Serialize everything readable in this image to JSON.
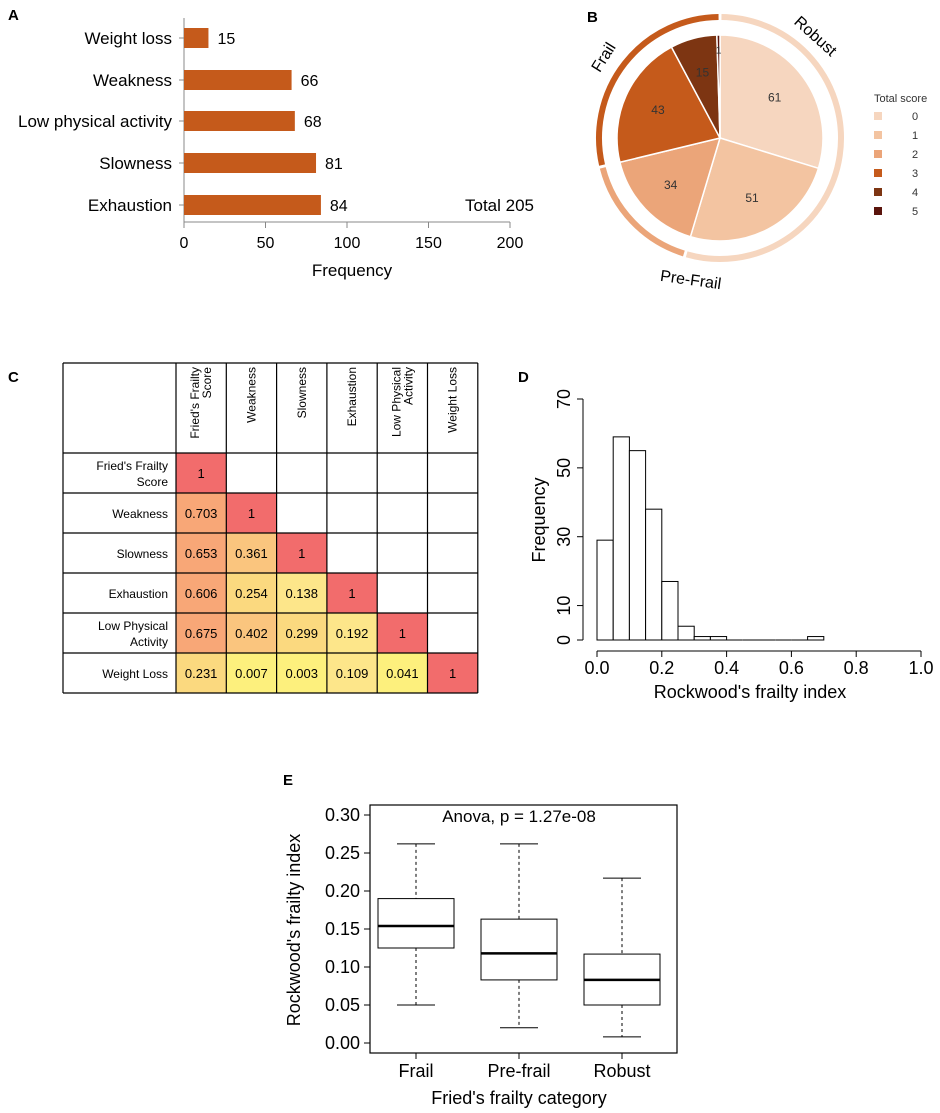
{
  "chart_data": [
    {
      "panel": "A",
      "type": "bar",
      "orientation": "horizontal",
      "categories": [
        "Weight loss",
        "Weakness",
        "Low physical activity",
        "Slowness",
        "Exhaustion"
      ],
      "values": [
        15,
        66,
        68,
        81,
        84
      ],
      "xlabel": "Frequency",
      "xlim": [
        0,
        200
      ],
      "xticks": [
        0,
        50,
        100,
        150,
        200
      ],
      "annotation": "Total 205",
      "color": "#c55a1b"
    },
    {
      "panel": "B",
      "type": "pie",
      "legend_title": "Total score",
      "legend_position": "right",
      "slices": [
        {
          "label": "0",
          "value": 61,
          "color": "#f6d6bf"
        },
        {
          "label": "1",
          "value": 51,
          "color": "#f3c4a1"
        },
        {
          "label": "2",
          "value": 34,
          "color": "#eba579"
        },
        {
          "label": "3",
          "value": 43,
          "color": "#c55a1b"
        },
        {
          "label": "4",
          "value": 15,
          "color": "#7d3512"
        },
        {
          "label": "5",
          "value": 1,
          "color": "#5a140c"
        }
      ],
      "groups": [
        {
          "name": "Robust",
          "color": "#f6d6bf"
        },
        {
          "name": "Pre-Frail",
          "color": "#eba579"
        },
        {
          "name": "Frail",
          "color": "#c55a1b"
        }
      ]
    },
    {
      "panel": "C",
      "type": "heatmap",
      "columns": [
        "Fried's Frailty Score",
        "Weakness",
        "Slowness",
        "Exhaustion",
        "Low Physical Activity",
        "Weight Loss"
      ],
      "rows": [
        "Fried's Frailty Score",
        "Weakness",
        "Slowness",
        "Exhaustion",
        "Low Physical Activity",
        "Weight Loss"
      ],
      "cells": [
        [
          "1"
        ],
        [
          "0.703",
          "1"
        ],
        [
          "0.653",
          "0.361",
          "1"
        ],
        [
          "0.606",
          "0.254",
          "0.138",
          "1"
        ],
        [
          "0.675",
          "0.402",
          "0.299",
          "0.192",
          "1"
        ],
        [
          "0.231",
          "0.007",
          "0.003",
          "0.109",
          "0.041",
          "1"
        ]
      ]
    },
    {
      "panel": "D",
      "type": "bar",
      "subtype": "histogram",
      "xlabel": "Rockwood's frailty index",
      "ylabel": "Frequency",
      "bin_width": 0.05,
      "bin_starts": [
        0.0,
        0.05,
        0.1,
        0.15,
        0.2,
        0.25,
        0.3,
        0.35,
        0.4,
        0.45,
        0.5,
        0.55,
        0.6,
        0.65
      ],
      "counts": [
        29,
        59,
        55,
        38,
        17,
        4,
        1,
        1,
        0,
        0,
        0,
        0,
        0,
        1
      ],
      "xlim": [
        0,
        1
      ],
      "ylim": [
        0,
        70
      ],
      "xticks": [
        "0.0",
        "0.2",
        "0.4",
        "0.6",
        "0.8",
        "1.0"
      ],
      "yticks": [
        0,
        10,
        30,
        50,
        70
      ]
    },
    {
      "panel": "E",
      "type": "boxplot",
      "title": "Anova, p = 1.27e-08",
      "xlabel": "Fried's frailty category",
      "ylabel": "Rockwood's frailty index",
      "ylim": [
        0,
        0.3
      ],
      "yticks": [
        "0.00",
        "0.05",
        "0.10",
        "0.15",
        "0.20",
        "0.25",
        "0.30"
      ],
      "categories": [
        "Frail",
        "Pre-frail",
        "Robust"
      ],
      "boxes": [
        {
          "name": "Frail",
          "min": 0.05,
          "q1": 0.125,
          "median": 0.154,
          "q3": 0.19,
          "max": 0.262
        },
        {
          "name": "Pre-frail",
          "min": 0.02,
          "q1": 0.083,
          "median": 0.118,
          "q3": 0.163,
          "max": 0.262
        },
        {
          "name": "Robust",
          "min": 0.008,
          "q1": 0.05,
          "median": 0.083,
          "q3": 0.117,
          "max": 0.217
        }
      ]
    }
  ]
}
